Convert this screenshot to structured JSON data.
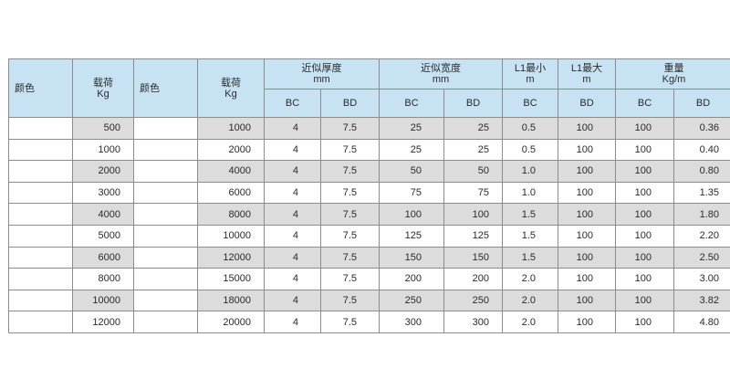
{
  "header": {
    "color1": "颜色",
    "load1_line1": "载荷",
    "load1_line2": "Kg",
    "color2": "颜色",
    "load2_line1": "载荷",
    "load2_line2": "Kg",
    "thickness_line1": "近似厚度",
    "thickness_line2": "mm",
    "width_line1": "近似宽度",
    "width_line2": "mm",
    "l1min_line1": "L1最小",
    "l1min_line2": "m",
    "l1max_line1": "L1最大",
    "l1max_line2": "m",
    "weight_line1": "重量",
    "weight_line2": "Kg/m",
    "bc": "BC",
    "bd": "BD"
  },
  "rows": [
    {
      "color1": "#8f2a22",
      "load1": "500",
      "color2": "#e3283f",
      "load2": "1000",
      "t_bc": "4",
      "t_bd": "7.5",
      "w_bc": "25",
      "w_bd": "25",
      "l1min": "0.5",
      "l1max": "100",
      "wt_bc": "100",
      "wt_bd": "0.36"
    },
    {
      "color1": "#e3283f",
      "load1": "1000",
      "color2": "#fdf6d9",
      "load2": "2000",
      "t_bc": "4",
      "t_bd": "7.5",
      "w_bc": "25",
      "w_bd": "25",
      "l1min": "0.5",
      "l1max": "100",
      "wt_bc": "100",
      "wt_bd": "0.40"
    },
    {
      "color1": "#2e8b3a",
      "load1": "2000",
      "color2": "#3a3d3a",
      "load2": "4000",
      "t_bc": "4",
      "t_bd": "7.5",
      "w_bc": "50",
      "w_bd": "50",
      "l1min": "1.0",
      "l1max": "100",
      "wt_bc": "100",
      "wt_bd": "0.80"
    },
    {
      "color1": "#f7e21a",
      "load1": "3000",
      "color2": "#2f63c6",
      "load2": "6000",
      "t_bc": "4",
      "t_bd": "7.5",
      "w_bc": "75",
      "w_bd": "75",
      "l1min": "1.0",
      "l1max": "100",
      "wt_bc": "100",
      "wt_bd": "1.35"
    },
    {
      "color1": "#3a3d3a",
      "load1": "4000",
      "color2": "#8f2a22",
      "load2": "8000",
      "t_bc": "4",
      "t_bd": "7.5",
      "w_bc": "100",
      "w_bd": "100",
      "l1min": "1.5",
      "l1max": "100",
      "wt_bc": "100",
      "wt_bd": "1.80"
    },
    {
      "color1": "#d8222c",
      "load1": "5000",
      "color2": "#8f2a22",
      "load2": "10000",
      "t_bc": "4",
      "t_bd": "7.5",
      "w_bc": "125",
      "w_bd": "125",
      "l1min": "1.5",
      "l1max": "100",
      "wt_bc": "100",
      "wt_bd": "2.20"
    },
    {
      "color1": "#f7e21a",
      "load1": "6000",
      "color2": "#8f2a22",
      "load2": "12000",
      "t_bc": "4",
      "t_bd": "7.5",
      "w_bc": "150",
      "w_bd": "150",
      "l1min": "1.5",
      "l1max": "100",
      "wt_bc": "100",
      "wt_bd": "2.50"
    },
    {
      "color1": "#2f63c6",
      "load1": "8000",
      "color2": "#8f2a22",
      "load2": "15000",
      "t_bc": "4",
      "t_bd": "7.5",
      "w_bc": "200",
      "w_bd": "200",
      "l1min": "2.0",
      "l1max": "100",
      "wt_bc": "100",
      "wt_bd": "3.00"
    },
    {
      "color1": "#8f2a22",
      "load1": "10000",
      "color2": "#8f2a22",
      "load2": "18000",
      "t_bc": "4",
      "t_bd": "7.5",
      "w_bc": "250",
      "w_bd": "250",
      "l1min": "2.0",
      "l1max": "100",
      "wt_bc": "100",
      "wt_bd": "3.82"
    },
    {
      "color1": "#8f2a22",
      "load1": "12000",
      "color2": "#8f2a22",
      "load2": "20000",
      "t_bc": "4",
      "t_bd": "7.5",
      "w_bc": "300",
      "w_bd": "300",
      "l1min": "2.0",
      "l1max": "100",
      "wt_bc": "100",
      "wt_bd": "4.80"
    }
  ]
}
